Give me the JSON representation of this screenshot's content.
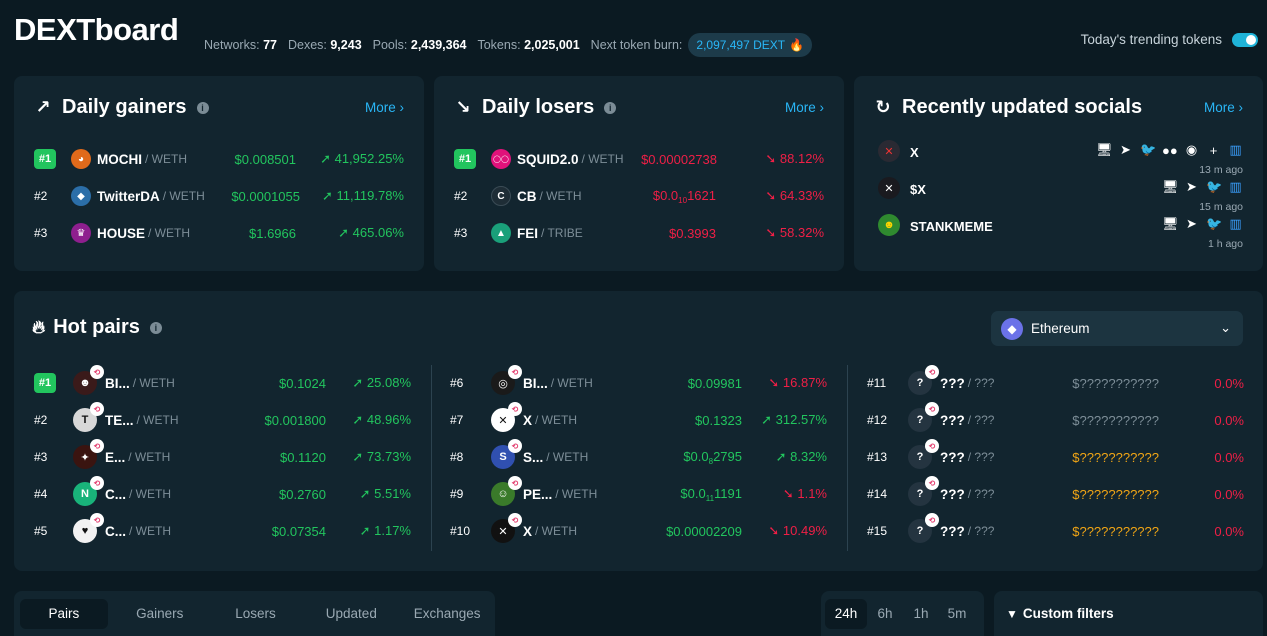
{
  "header": {
    "logo": "DEXTboard",
    "stats": [
      {
        "label": "Networks:",
        "value": "77"
      },
      {
        "label": "Dexes:",
        "value": "9,243"
      },
      {
        "label": "Pools:",
        "value": "2,439,364"
      },
      {
        "label": "Tokens:",
        "value": "2,025,001"
      }
    ],
    "burn_label": "Next token burn:",
    "burn_value": "2,097,497 DEXT",
    "trending_label": "Today's trending tokens",
    "trending_enabled": true
  },
  "gainers": {
    "title": "Daily gainers",
    "more": "More",
    "rows": [
      {
        "rank": "#1",
        "symbol": "MOCHI",
        "quote": "/ WETH",
        "price": "$0.008501",
        "pct": "41,952.25%"
      },
      {
        "rank": "#2",
        "symbol": "TwitterDA",
        "quote": "/ WETH",
        "price": "$0.0001055",
        "pct": "11,119.78%"
      },
      {
        "rank": "#3",
        "symbol": "HOUSE",
        "quote": "/ WETH",
        "price": "$1.6966",
        "pct": "465.06%"
      }
    ]
  },
  "losers": {
    "title": "Daily losers",
    "more": "More",
    "rows": [
      {
        "rank": "#1",
        "symbol": "SQUID2.0",
        "quote": "/ WETH",
        "price": "$0.00002738",
        "pct": "88.12%"
      },
      {
        "rank": "#2",
        "symbol": "CB",
        "quote": "/ WETH",
        "price_main": "$0.0",
        "price_sub": "10",
        "price_tail": "1621",
        "pct": "64.33%"
      },
      {
        "rank": "#3",
        "symbol": "FEI",
        "quote": "/ TRIBE",
        "price": "$0.3993",
        "pct": "58.32%"
      }
    ]
  },
  "socials": {
    "title": "Recently updated socials",
    "more": "More",
    "rows": [
      {
        "name": "X",
        "time": "13 m ago"
      },
      {
        "name": "$X",
        "time": "15 m ago"
      },
      {
        "name": "STANKMEME",
        "time": "1 h ago"
      }
    ]
  },
  "hot_pairs": {
    "title": "Hot pairs",
    "chain": "Ethereum",
    "rows": [
      {
        "rank": "#1",
        "symbol": "BI...",
        "quote": "/ WETH",
        "price": "$0.1024",
        "pct": "25.08%",
        "dir": "up"
      },
      {
        "rank": "#2",
        "symbol": "TE...",
        "quote": "/ WETH",
        "price": "$0.001800",
        "pct": "48.96%",
        "dir": "up"
      },
      {
        "rank": "#3",
        "symbol": "E...",
        "quote": "/ WETH",
        "price": "$0.1120",
        "pct": "73.73%",
        "dir": "up"
      },
      {
        "rank": "#4",
        "symbol": "C...",
        "quote": "/ WETH",
        "price": "$0.2760",
        "pct": "5.51%",
        "dir": "up"
      },
      {
        "rank": "#5",
        "symbol": "C...",
        "quote": "/ WETH",
        "price": "$0.07354",
        "pct": "1.17%",
        "dir": "up"
      },
      {
        "rank": "#6",
        "symbol": "BI...",
        "quote": "/ WETH",
        "price": "$0.09981",
        "pct": "16.87%",
        "dir": "down"
      },
      {
        "rank": "#7",
        "symbol": "X",
        "quote": "/ WETH",
        "price": "$0.1323",
        "pct": "312.57%",
        "dir": "up"
      },
      {
        "rank": "#8",
        "symbol": "S...",
        "quote": "/ WETH",
        "price_main": "$0.0",
        "price_sub": "8",
        "price_tail": "2795",
        "pct": "8.32%",
        "dir": "up"
      },
      {
        "rank": "#9",
        "symbol": "PE...",
        "quote": "/ WETH",
        "price_main": "$0.0",
        "price_sub": "11",
        "price_tail": "1191",
        "pct": "1.1%",
        "dir": "down"
      },
      {
        "rank": "#10",
        "symbol": "X",
        "quote": "/ WETH",
        "price": "$0.00002209",
        "pct": "10.49%",
        "dir": "down"
      },
      {
        "rank": "#11",
        "symbol": "???",
        "quote": "/ ???",
        "price": "$???????????",
        "pct": "0.0%",
        "dir": "none"
      },
      {
        "rank": "#12",
        "symbol": "???",
        "quote": "/ ???",
        "price": "$???????????",
        "pct": "0.0%",
        "dir": "none"
      },
      {
        "rank": "#13",
        "symbol": "???",
        "quote": "/ ???",
        "price": "$???????????",
        "pct": "0.0%",
        "dir": "none"
      },
      {
        "rank": "#14",
        "symbol": "???",
        "quote": "/ ???",
        "price": "$???????????",
        "pct": "0.0%",
        "dir": "none"
      },
      {
        "rank": "#15",
        "symbol": "???",
        "quote": "/ ???",
        "price": "$???????????",
        "pct": "0.0%",
        "dir": "none"
      }
    ]
  },
  "tabs": [
    "Pairs",
    "Gainers",
    "Losers",
    "Updated",
    "Exchanges"
  ],
  "timeframes": [
    "24h",
    "6h",
    "1h",
    "5m"
  ],
  "filters_label": "Custom filters",
  "colors": {
    "accent": "#29b6f6",
    "up": "#22c55e",
    "down": "#ef1f46",
    "unknown_price": "#f0a515"
  }
}
